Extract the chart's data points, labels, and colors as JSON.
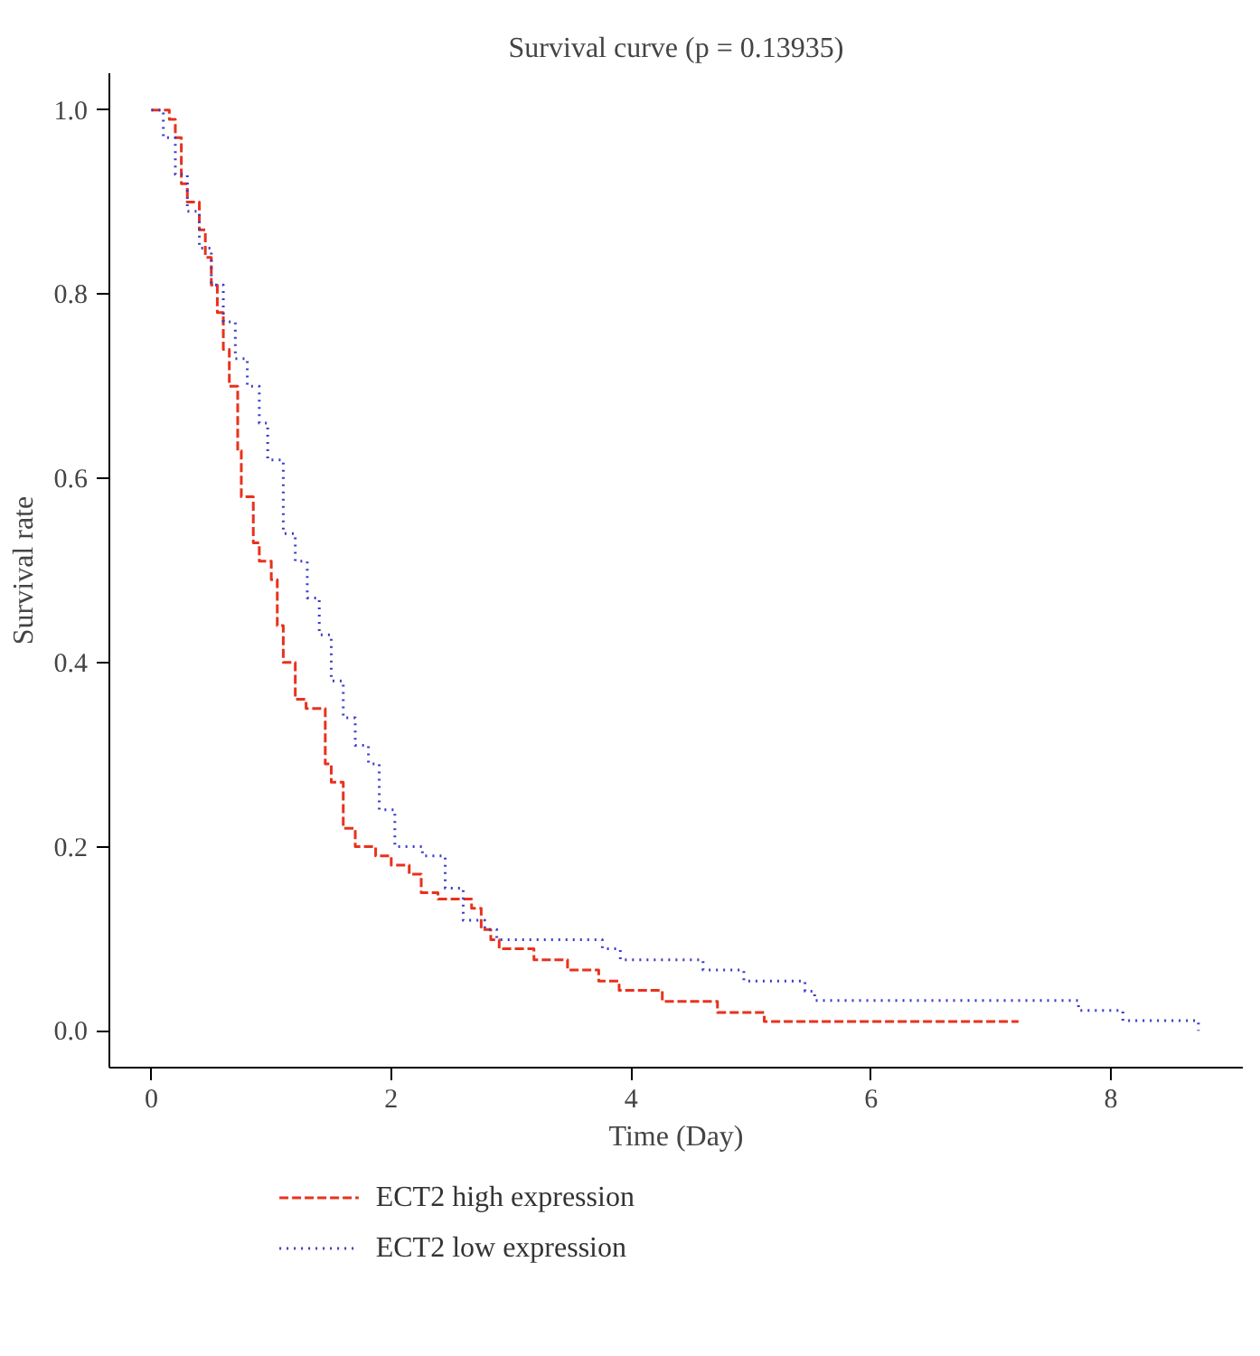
{
  "chart_data": {
    "type": "step",
    "title": "Survival curve (p = 0.13935)",
    "xlabel": "Time (Day)",
    "ylabel": "Survival rate",
    "xlim": [
      -0.35,
      9.1
    ],
    "ylim": [
      -0.04,
      1.04
    ],
    "xticks": [
      0,
      2,
      4,
      6,
      8
    ],
    "yticks": [
      {
        "value": 0,
        "label": "0.0"
      },
      {
        "value": 0.2,
        "label": "0.2"
      },
      {
        "value": 0.4,
        "label": "0.4"
      },
      {
        "value": 0.6,
        "label": "0.6"
      },
      {
        "value": 0.8,
        "label": "0.8"
      },
      {
        "value": 1,
        "label": "1.0"
      }
    ],
    "grid": false,
    "legend": "bottom left",
    "series": [
      {
        "name": "ECT2 high expression",
        "color": "#e8321e",
        "line_style": "dashed",
        "x": [
          0,
          0.15,
          0.2,
          0.25,
          0.3,
          0.4,
          0.45,
          0.5,
          0.55,
          0.6,
          0.65,
          0.72,
          0.75,
          0.85,
          0.9,
          1.0,
          1.05,
          1.1,
          1.2,
          1.29,
          1.45,
          1.5,
          1.6,
          1.7,
          1.87,
          2.0,
          2.15,
          2.25,
          2.39,
          2.67,
          2.75,
          2.83,
          2.9,
          3.19,
          3.47,
          3.73,
          3.9,
          4.26,
          4.72,
          5.11,
          7.23
        ],
        "values": [
          1.0,
          0.99,
          0.97,
          0.92,
          0.9,
          0.87,
          0.84,
          0.81,
          0.78,
          0.74,
          0.7,
          0.63,
          0.58,
          0.53,
          0.51,
          0.49,
          0.44,
          0.4,
          0.36,
          0.35,
          0.29,
          0.27,
          0.22,
          0.2,
          0.19,
          0.18,
          0.17,
          0.15,
          0.143,
          0.133,
          0.11,
          0.099,
          0.089,
          0.077,
          0.066,
          0.054,
          0.044,
          0.032,
          0.02,
          0.01,
          0.01
        ]
      },
      {
        "name": "ECT2 low expression",
        "color": "#3c3cc8",
        "line_style": "dotted",
        "x": [
          0,
          0.1,
          0.2,
          0.3,
          0.4,
          0.5,
          0.6,
          0.7,
          0.8,
          0.9,
          0.97,
          1.1,
          1.2,
          1.3,
          1.4,
          1.5,
          1.6,
          1.7,
          1.81,
          1.9,
          2.03,
          2.26,
          2.45,
          2.6,
          2.78,
          2.88,
          3.76,
          3.91,
          4.6,
          4.94,
          5.45,
          5.53,
          7.73,
          8.1,
          8.73
        ],
        "values": [
          1.0,
          0.97,
          0.93,
          0.89,
          0.85,
          0.81,
          0.77,
          0.73,
          0.7,
          0.66,
          0.62,
          0.54,
          0.51,
          0.47,
          0.43,
          0.38,
          0.34,
          0.31,
          0.29,
          0.24,
          0.2,
          0.19,
          0.155,
          0.12,
          0.11,
          0.099,
          0.089,
          0.077,
          0.066,
          0.054,
          0.043,
          0.033,
          0.022,
          0.011,
          0.0
        ]
      }
    ]
  }
}
